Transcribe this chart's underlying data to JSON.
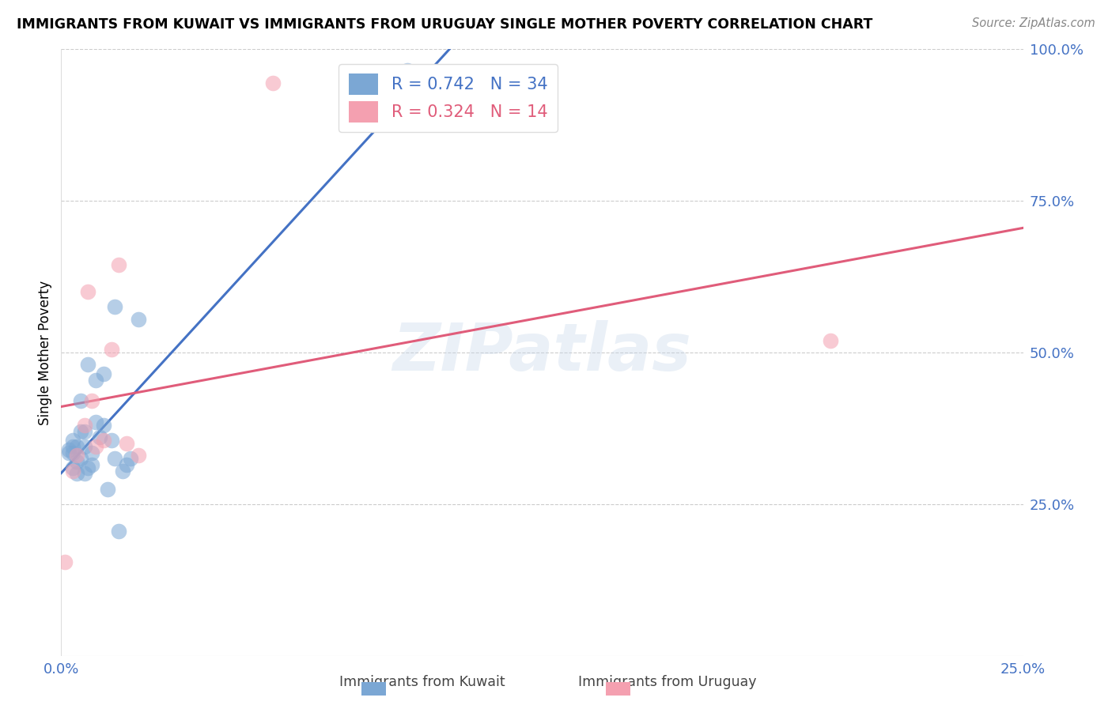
{
  "title": "IMMIGRANTS FROM KUWAIT VS IMMIGRANTS FROM URUGUAY SINGLE MOTHER POVERTY CORRELATION CHART",
  "source": "Source: ZipAtlas.com",
  "ylabel": "Single Mother Poverty",
  "xlim": [
    0.0,
    0.25
  ],
  "ylim": [
    0.0,
    1.0
  ],
  "xticks": [
    0.0,
    0.05,
    0.1,
    0.15,
    0.2,
    0.25
  ],
  "xticklabels": [
    "0.0%",
    "",
    "",
    "",
    "",
    "25.0%"
  ],
  "yticks": [
    0.25,
    0.5,
    0.75,
    1.0
  ],
  "yticklabels": [
    "25.0%",
    "50.0%",
    "75.0%",
    "100.0%"
  ],
  "kuwait_color": "#7BA7D4",
  "uruguay_color": "#F4A0B0",
  "kuwait_line_color": "#4472C4",
  "uruguay_line_color": "#E05C7A",
  "kuwait_R": 0.742,
  "kuwait_N": 34,
  "uruguay_R": 0.324,
  "uruguay_N": 14,
  "watermark": "ZIPatlas",
  "legend_text_color": "#4472C4",
  "kuwait_x": [
    0.002,
    0.002,
    0.003,
    0.003,
    0.003,
    0.003,
    0.004,
    0.004,
    0.004,
    0.005,
    0.005,
    0.005,
    0.006,
    0.006,
    0.006,
    0.007,
    0.007,
    0.008,
    0.008,
    0.009,
    0.009,
    0.01,
    0.011,
    0.011,
    0.012,
    0.013,
    0.014,
    0.014,
    0.015,
    0.016,
    0.017,
    0.018,
    0.02,
    0.09
  ],
  "kuwait_y": [
    0.335,
    0.34,
    0.31,
    0.335,
    0.345,
    0.355,
    0.3,
    0.32,
    0.345,
    0.325,
    0.37,
    0.42,
    0.3,
    0.345,
    0.37,
    0.31,
    0.48,
    0.315,
    0.335,
    0.385,
    0.455,
    0.36,
    0.38,
    0.465,
    0.275,
    0.355,
    0.325,
    0.575,
    0.205,
    0.305,
    0.315,
    0.325,
    0.555,
    0.965
  ],
  "uruguay_x": [
    0.001,
    0.003,
    0.004,
    0.006,
    0.007,
    0.008,
    0.009,
    0.011,
    0.013,
    0.015,
    0.017,
    0.02,
    0.055,
    0.2
  ],
  "uruguay_y": [
    0.155,
    0.305,
    0.33,
    0.38,
    0.6,
    0.42,
    0.345,
    0.355,
    0.505,
    0.645,
    0.35,
    0.33,
    0.945,
    0.52
  ]
}
